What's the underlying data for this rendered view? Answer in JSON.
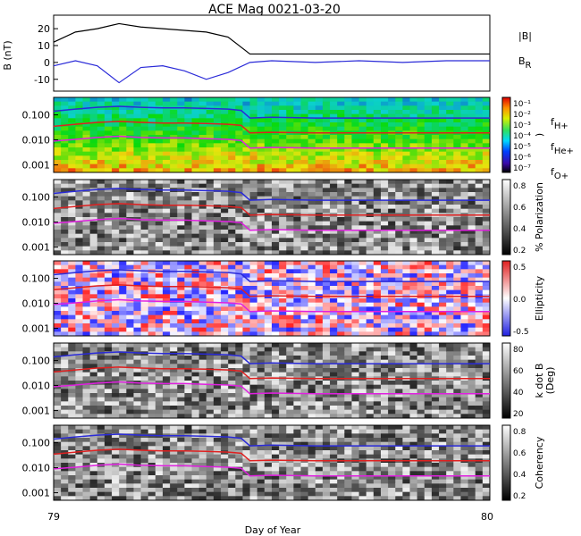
{
  "chart_data": {
    "type": "heatmap",
    "title": "ACE Mag 0021-03-20",
    "xlabel": "Day of Year",
    "xlim": [
      79,
      80
    ],
    "xticks": [
      "79",
      "80"
    ],
    "panels": [
      {
        "type": "line",
        "ylabel": "B (nT)",
        "ylim": [
          -17,
          28
        ],
        "yticks": [
          "20",
          "10",
          "0",
          "-10"
        ],
        "legend": [
          {
            "name": "|B|",
            "color": "#000000"
          },
          {
            "name": "B",
            "sub": "R",
            "color": "#2a2ad8"
          }
        ],
        "series": [
          {
            "name": "|B|",
            "x": [
              79.0,
              79.05,
              79.1,
              79.15,
              79.2,
              79.25,
              79.3,
              79.35,
              79.4,
              79.45,
              79.5,
              79.6,
              79.7,
              79.8,
              79.9,
              80.0
            ],
            "values": [
              12,
              18,
              20,
              23,
              21,
              20,
              19,
              18,
              15,
              5,
              5,
              5,
              5,
              5,
              5,
              5
            ]
          },
          {
            "name": "B",
            "x": [
              79.0,
              79.05,
              79.1,
              79.15,
              79.2,
              79.25,
              79.3,
              79.35,
              79.4,
              79.45,
              79.5,
              79.6,
              79.7,
              79.8,
              79.9,
              80.0
            ],
            "values": [
              -2,
              1,
              -2,
              -12,
              -3,
              -2,
              -5,
              -10,
              -6,
              0,
              1,
              0,
              1,
              0,
              1,
              1
            ]
          }
        ]
      },
      {
        "type": "heatmap",
        "ylabel": "",
        "yticks": [
          "0.100",
          "0.010",
          "0.001"
        ],
        "colorbar_ticks": [
          "10⁻¹",
          "10⁻²",
          "10⁻³",
          "10⁻⁴",
          "10⁻⁵",
          "10⁻⁶",
          "10⁻⁷"
        ],
        "colorbar_label": ")",
        "legend": [
          {
            "name": "f",
            "sub": "H+",
            "color": "#2a2ad8"
          },
          {
            "name": "f",
            "sub": "He+",
            "color": "#e02020"
          },
          {
            "name": "f",
            "sub": "O+",
            "color": "#e020e0"
          }
        ]
      },
      {
        "type": "heatmap",
        "yticks": [
          "0.100",
          "0.010",
          "0.001"
        ],
        "colorbar_ticks": [
          "0.8",
          "0.6",
          "0.4",
          "0.2"
        ],
        "colorbar_label": "% Polarization"
      },
      {
        "type": "heatmap",
        "yticks": [
          "0.100",
          "0.010",
          "0.001"
        ],
        "colorbar_ticks": [
          "0.5",
          "0.0",
          "-0.5"
        ],
        "colorbar_label": "Ellipticity"
      },
      {
        "type": "heatmap",
        "yticks": [
          "0.100",
          "0.010",
          "0.001"
        ],
        "colorbar_ticks": [
          "80",
          "60",
          "40",
          "20"
        ],
        "colorbar_label": "k dot B",
        "colorbar_label2": "(Deg)"
      },
      {
        "type": "heatmap",
        "yticks": [
          "0.100",
          "0.010",
          "0.001"
        ],
        "colorbar_ticks": [
          "0.8",
          "0.6",
          "0.4",
          "0.2"
        ],
        "colorbar_label": "Coherency"
      }
    ],
    "frequency_lines": {
      "x": [
        79.0,
        79.05,
        79.1,
        79.15,
        79.2,
        79.25,
        79.3,
        79.35,
        79.4,
        79.43,
        79.45,
        79.5,
        79.6,
        79.7,
        79.8,
        79.9,
        80.0
      ],
      "fH+": [
        0.14,
        0.17,
        0.2,
        0.22,
        0.2,
        0.19,
        0.19,
        0.18,
        0.17,
        0.15,
        0.075,
        0.08,
        0.075,
        0.075,
        0.075,
        0.075,
        0.075
      ],
      "fHe+": [
        0.035,
        0.042,
        0.05,
        0.055,
        0.05,
        0.047,
        0.047,
        0.045,
        0.042,
        0.038,
        0.019,
        0.02,
        0.019,
        0.019,
        0.019,
        0.019,
        0.019
      ],
      "fO+": [
        0.009,
        0.0105,
        0.0125,
        0.014,
        0.0125,
        0.012,
        0.012,
        0.0112,
        0.0105,
        0.0095,
        0.0047,
        0.005,
        0.0047,
        0.0047,
        0.0047,
        0.0047,
        0.0047
      ]
    }
  },
  "colors": {
    "H": "#2a2ad8",
    "He": "#e02020",
    "O": "#e020e0"
  }
}
